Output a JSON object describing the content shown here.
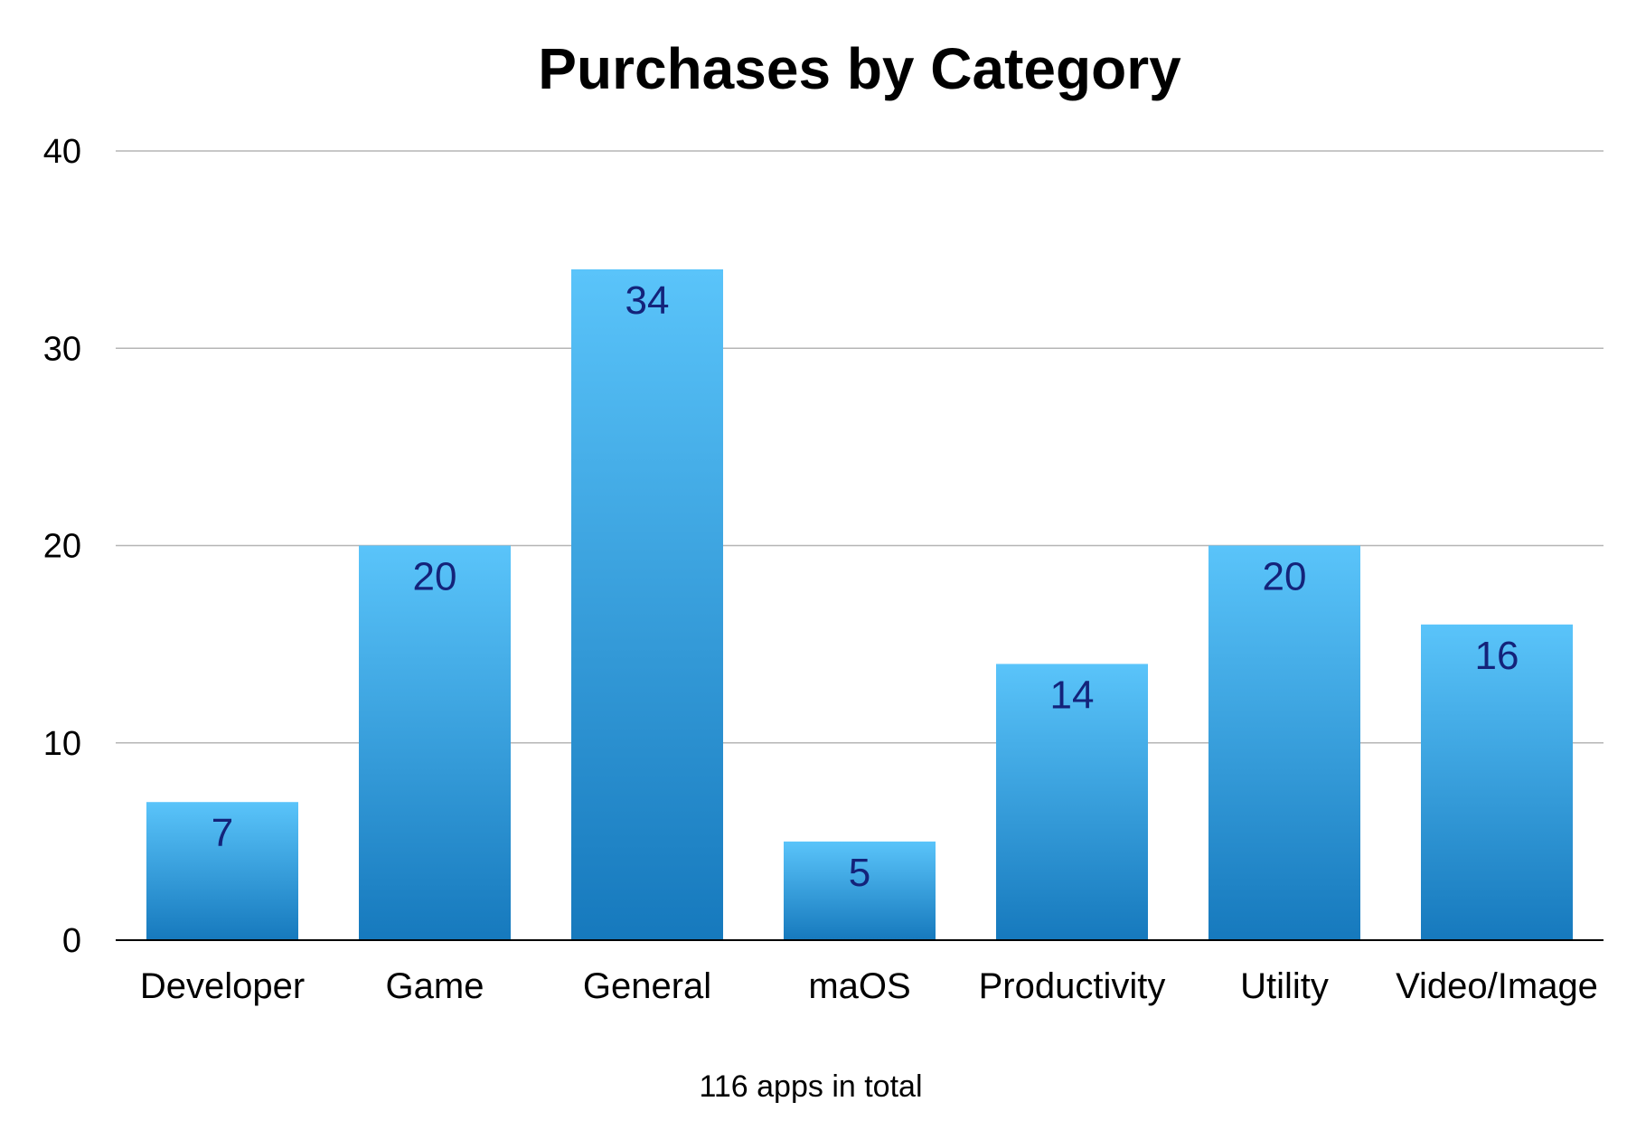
{
  "chart_data": {
    "type": "bar",
    "title": "Purchases by Category",
    "categories": [
      "Developer",
      "Game",
      "General",
      "maOS",
      "Productivity",
      "Utility",
      "Video/Image"
    ],
    "values": [
      7,
      20,
      34,
      5,
      14,
      20,
      16
    ],
    "data_labels": [
      "7",
      "20",
      "34",
      "5",
      "14",
      "20",
      "16"
    ],
    "ylim": [
      0,
      40
    ],
    "yticks": [
      0,
      10,
      20,
      30,
      40
    ],
    "ytick_labels": [
      "0",
      "10",
      "20",
      "30",
      "40"
    ],
    "grid": true,
    "legend": "none",
    "caption": "116 apps in total",
    "colors": {
      "bar_top": "#5ac4fa",
      "bar_bottom": "#1679bd",
      "data_label": "#14237a",
      "grid": "#b5b5b5"
    }
  }
}
